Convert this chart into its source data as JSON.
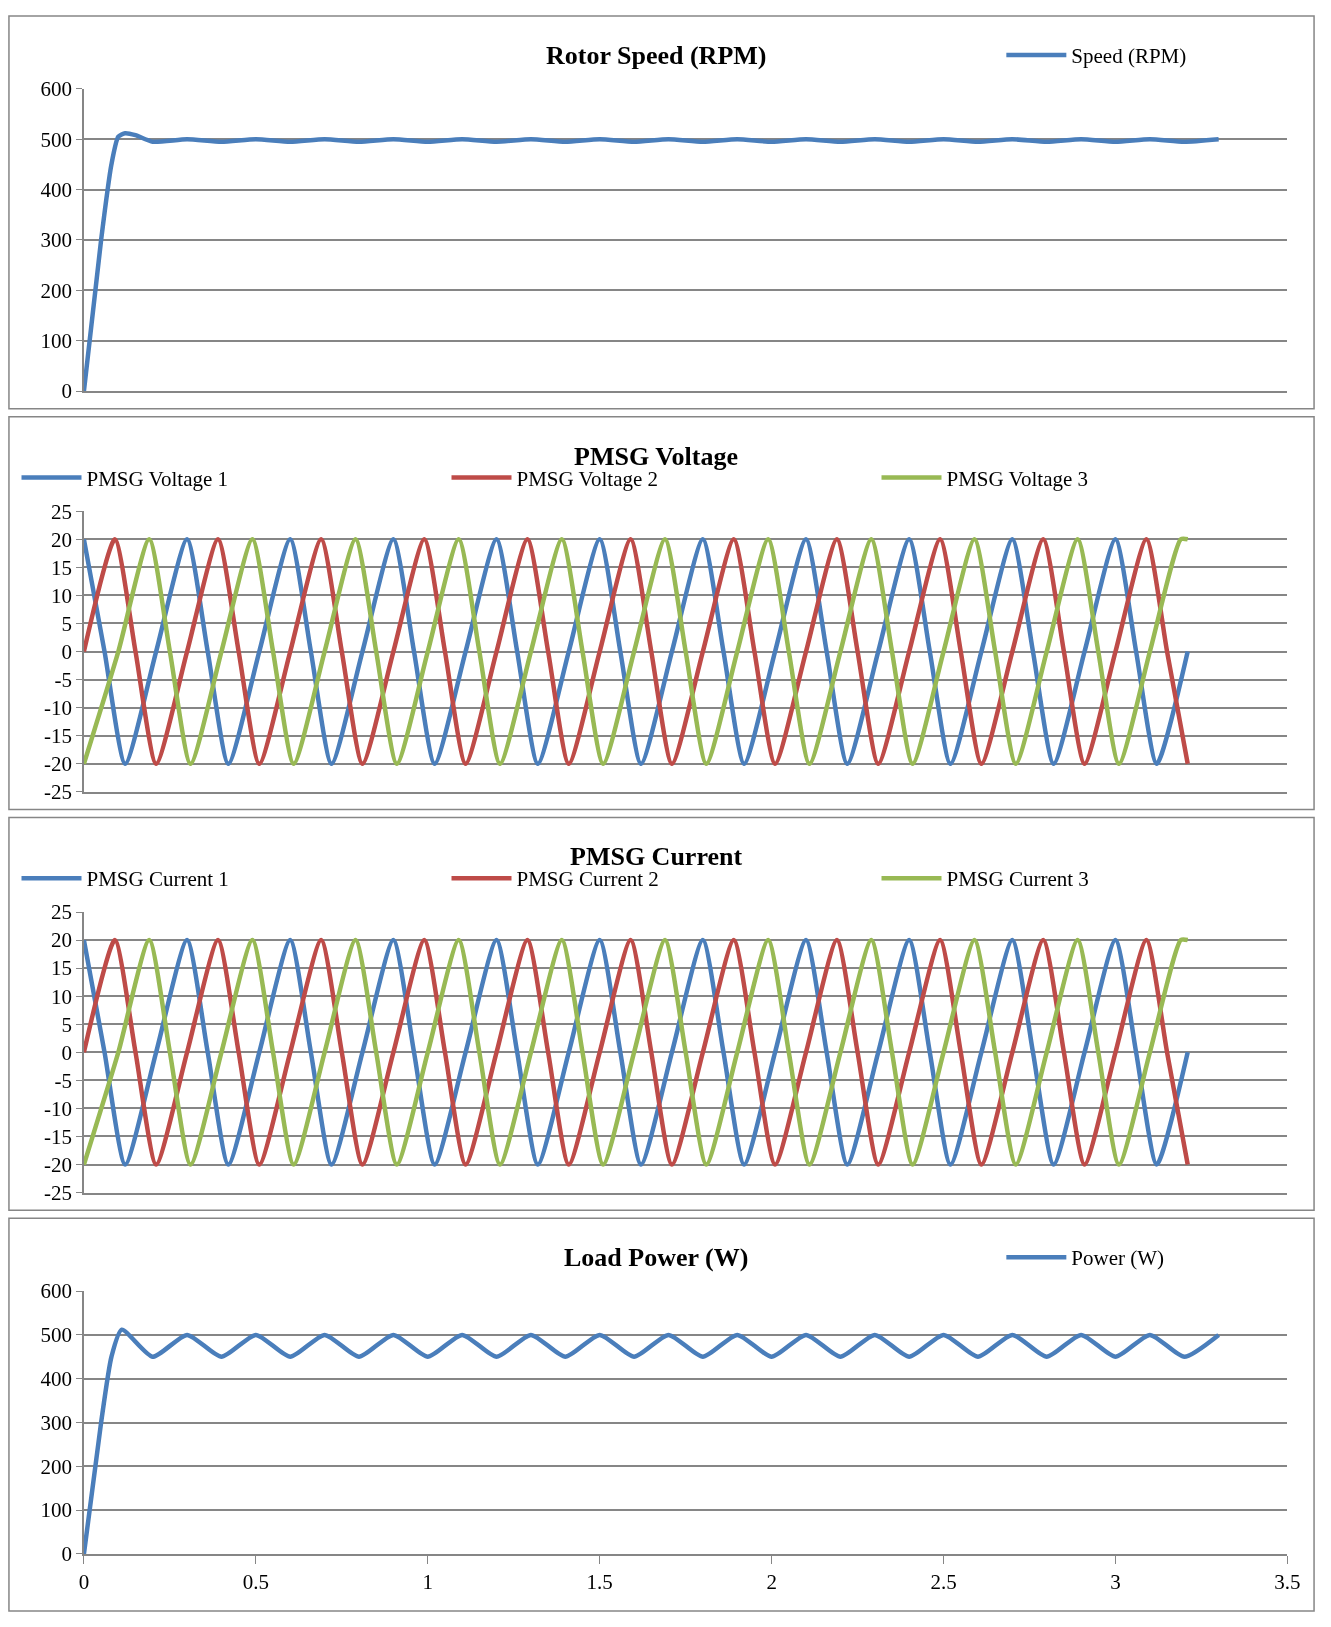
{
  "chart_data": [
    {
      "type": "line",
      "title": "Rotor Speed (RPM)",
      "legend": "top right",
      "grid": "y",
      "tick_labels": "y",
      "xlim": [
        0,
        3.5
      ],
      "ylim": [
        0,
        600
      ],
      "yticks": [
        0,
        100,
        200,
        300,
        400,
        500,
        600
      ],
      "series": [
        {
          "name": "Speed (RPM)",
          "color": "#4a7ebb",
          "x": [
            0,
            0.05,
            0.08,
            0.1,
            0.12,
            0.15,
            0.2,
            0.3,
            0.4,
            0.5,
            0.6,
            0.7,
            0.8,
            0.9,
            1.0,
            1.1,
            1.2,
            1.3,
            1.4,
            1.5,
            1.6,
            1.7,
            1.8,
            1.9,
            2.0,
            2.1,
            2.2,
            2.3,
            2.4,
            2.5,
            2.6,
            2.7,
            2.8,
            2.9,
            3.0,
            3.1,
            3.2,
            3.3
          ],
          "values": [
            0,
            300,
            450,
            505,
            512,
            508,
            495,
            500,
            495,
            500,
            495,
            500,
            495,
            500,
            495,
            500,
            495,
            500,
            495,
            500,
            495,
            500,
            495,
            500,
            495,
            500,
            495,
            500,
            495,
            500,
            495,
            500,
            495,
            500,
            495,
            500,
            495,
            500
          ]
        }
      ]
    },
    {
      "type": "line",
      "title": "PMSG Voltage",
      "legend": "top",
      "grid": "y",
      "tick_labels": "y",
      "xlim": [
        0,
        3.5
      ],
      "ylim": [
        -25,
        25
      ],
      "yticks": [
        -25,
        -20,
        -15,
        -10,
        -5,
        0,
        5,
        10,
        15,
        20,
        25
      ],
      "series": [
        {
          "name": "PMSG Voltage 1",
          "color": "#4a7ebb",
          "x": [
            0,
            0.06,
            0.12,
            0.21,
            0.3,
            0.36,
            0.42,
            0.51,
            0.6,
            0.66,
            0.72,
            0.81,
            0.9,
            0.96,
            1.02,
            1.11,
            1.2,
            1.26,
            1.32,
            1.41,
            1.5,
            1.56,
            1.62,
            1.71,
            1.8,
            1.86,
            1.92,
            2.01,
            2.1,
            2.16,
            2.22,
            2.31,
            2.4,
            2.46,
            2.52,
            2.61,
            2.7,
            2.76,
            2.82,
            2.91,
            3.0,
            3.06,
            3.12,
            3.21
          ],
          "values": [
            20,
            0,
            -20,
            0,
            20,
            0,
            -20,
            0,
            20,
            0,
            -20,
            0,
            20,
            0,
            -20,
            0,
            20,
            0,
            -20,
            0,
            20,
            0,
            -20,
            0,
            20,
            0,
            -20,
            0,
            20,
            0,
            -20,
            0,
            20,
            0,
            -20,
            0,
            20,
            0,
            -20,
            0,
            20,
            0,
            -20,
            0
          ]
        },
        {
          "name": "PMSG Voltage 2",
          "color": "#be4b48",
          "x": [
            0,
            0.09,
            0.15,
            0.21,
            0.3,
            0.39,
            0.45,
            0.51,
            0.6,
            0.69,
            0.75,
            0.81,
            0.9,
            0.99,
            1.05,
            1.11,
            1.2,
            1.29,
            1.35,
            1.41,
            1.5,
            1.59,
            1.65,
            1.71,
            1.8,
            1.89,
            1.95,
            2.01,
            2.1,
            2.19,
            2.25,
            2.31,
            2.4,
            2.49,
            2.55,
            2.61,
            2.7,
            2.79,
            2.85,
            2.91,
            3.0,
            3.09,
            3.15,
            3.21
          ],
          "values": [
            0,
            20,
            0,
            -20,
            0,
            20,
            0,
            -20,
            0,
            20,
            0,
            -20,
            0,
            20,
            0,
            -20,
            0,
            20,
            0,
            -20,
            0,
            20,
            0,
            -20,
            0,
            20,
            0,
            -20,
            0,
            20,
            0,
            -20,
            0,
            20,
            0,
            -20,
            0,
            20,
            0,
            -20,
            0,
            20,
            0,
            -20
          ]
        },
        {
          "name": "PMSG Voltage 3",
          "color": "#98b954",
          "x": [
            0,
            0.1,
            0.19,
            0.25,
            0.31,
            0.4,
            0.49,
            0.55,
            0.61,
            0.7,
            0.79,
            0.85,
            0.91,
            1.0,
            1.09,
            1.15,
            1.21,
            1.3,
            1.39,
            1.45,
            1.51,
            1.6,
            1.69,
            1.75,
            1.81,
            1.9,
            1.99,
            2.05,
            2.11,
            2.2,
            2.29,
            2.35,
            2.41,
            2.5,
            2.59,
            2.65,
            2.71,
            2.8,
            2.89,
            2.95,
            3.01,
            3.1,
            3.19,
            3.21
          ],
          "values": [
            -20,
            0,
            20,
            0,
            -20,
            0,
            20,
            0,
            -20,
            0,
            20,
            0,
            -20,
            0,
            20,
            0,
            -20,
            0,
            20,
            0,
            -20,
            0,
            20,
            0,
            -20,
            0,
            20,
            0,
            -20,
            0,
            20,
            0,
            -20,
            0,
            20,
            0,
            -20,
            0,
            20,
            0,
            -20,
            0,
            20,
            20
          ]
        }
      ]
    },
    {
      "type": "line",
      "title": "PMSG Current",
      "legend": "top",
      "grid": "y",
      "tick_labels": "y",
      "xlim": [
        0,
        3.5
      ],
      "ylim": [
        -25,
        25
      ],
      "yticks": [
        -25,
        -20,
        -15,
        -10,
        -5,
        0,
        5,
        10,
        15,
        20,
        25
      ],
      "series": [
        {
          "name": "PMSG Current 1",
          "color": "#4a7ebb",
          "x": [
            0,
            0.06,
            0.12,
            0.21,
            0.3,
            0.36,
            0.42,
            0.51,
            0.6,
            0.66,
            0.72,
            0.81,
            0.9,
            0.96,
            1.02,
            1.11,
            1.2,
            1.26,
            1.32,
            1.41,
            1.5,
            1.56,
            1.62,
            1.71,
            1.8,
            1.86,
            1.92,
            2.01,
            2.1,
            2.16,
            2.22,
            2.31,
            2.4,
            2.46,
            2.52,
            2.61,
            2.7,
            2.76,
            2.82,
            2.91,
            3.0,
            3.06,
            3.12,
            3.21
          ],
          "values": [
            20,
            0,
            -20,
            0,
            20,
            0,
            -20,
            0,
            20,
            0,
            -20,
            0,
            20,
            0,
            -20,
            0,
            20,
            0,
            -20,
            0,
            20,
            0,
            -20,
            0,
            20,
            0,
            -20,
            0,
            20,
            0,
            -20,
            0,
            20,
            0,
            -20,
            0,
            20,
            0,
            -20,
            0,
            20,
            0,
            -20,
            0
          ]
        },
        {
          "name": "PMSG Current 2",
          "color": "#be4b48",
          "x": [
            0,
            0.09,
            0.15,
            0.21,
            0.3,
            0.39,
            0.45,
            0.51,
            0.6,
            0.69,
            0.75,
            0.81,
            0.9,
            0.99,
            1.05,
            1.11,
            1.2,
            1.29,
            1.35,
            1.41,
            1.5,
            1.59,
            1.65,
            1.71,
            1.8,
            1.89,
            1.95,
            2.01,
            2.1,
            2.19,
            2.25,
            2.31,
            2.4,
            2.49,
            2.55,
            2.61,
            2.7,
            2.79,
            2.85,
            2.91,
            3.0,
            3.09,
            3.15,
            3.21
          ],
          "values": [
            0,
            20,
            0,
            -20,
            0,
            20,
            0,
            -20,
            0,
            20,
            0,
            -20,
            0,
            20,
            0,
            -20,
            0,
            20,
            0,
            -20,
            0,
            20,
            0,
            -20,
            0,
            20,
            0,
            -20,
            0,
            20,
            0,
            -20,
            0,
            20,
            0,
            -20,
            0,
            20,
            0,
            -20,
            0,
            20,
            0,
            -20
          ]
        },
        {
          "name": "PMSG Current 3",
          "color": "#98b954",
          "x": [
            0,
            0.1,
            0.19,
            0.25,
            0.31,
            0.4,
            0.49,
            0.55,
            0.61,
            0.7,
            0.79,
            0.85,
            0.91,
            1.0,
            1.09,
            1.15,
            1.21,
            1.3,
            1.39,
            1.45,
            1.51,
            1.6,
            1.69,
            1.75,
            1.81,
            1.9,
            1.99,
            2.05,
            2.11,
            2.2,
            2.29,
            2.35,
            2.41,
            2.5,
            2.59,
            2.65,
            2.71,
            2.8,
            2.89,
            2.95,
            3.01,
            3.1,
            3.19,
            3.21
          ],
          "values": [
            -20,
            0,
            20,
            0,
            -20,
            0,
            20,
            0,
            -20,
            0,
            20,
            0,
            -20,
            0,
            20,
            0,
            -20,
            0,
            20,
            0,
            -20,
            0,
            20,
            0,
            -20,
            0,
            20,
            0,
            -20,
            0,
            20,
            0,
            -20,
            0,
            20,
            0,
            -20,
            0,
            20,
            0,
            -20,
            0,
            20,
            20
          ]
        }
      ]
    },
    {
      "type": "line",
      "title": "Load Power (W)",
      "legend": "top right",
      "grid": "y",
      "xlim": [
        0,
        3.5
      ],
      "xticks": [
        0,
        0.5,
        1,
        1.5,
        2,
        2.5,
        3,
        3.5
      ],
      "ylim": [
        0,
        600
      ],
      "yticks": [
        0,
        100,
        200,
        300,
        400,
        500,
        600
      ],
      "series": [
        {
          "name": "Power (W)",
          "color": "#4a7ebb",
          "x": [
            0,
            0.05,
            0.08,
            0.11,
            0.2,
            0.3,
            0.4,
            0.5,
            0.6,
            0.7,
            0.8,
            0.9,
            1.0,
            1.1,
            1.2,
            1.3,
            1.4,
            1.5,
            1.6,
            1.7,
            1.8,
            1.9,
            2.0,
            2.1,
            2.2,
            2.3,
            2.4,
            2.5,
            2.6,
            2.7,
            2.8,
            2.9,
            3.0,
            3.1,
            3.2,
            3.3
          ],
          "values": [
            0,
            300,
            450,
            512,
            450,
            500,
            450,
            500,
            450,
            500,
            450,
            500,
            450,
            500,
            450,
            500,
            450,
            500,
            450,
            500,
            450,
            500,
            450,
            500,
            450,
            500,
            450,
            500,
            450,
            500,
            450,
            500,
            450,
            500,
            450,
            500
          ]
        }
      ]
    }
  ]
}
